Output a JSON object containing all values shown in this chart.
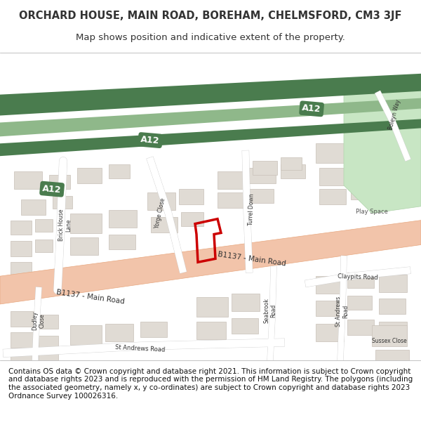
{
  "title_line1": "ORCHARD HOUSE, MAIN ROAD, BOREHAM, CHELMSFORD, CM3 3JF",
  "title_line2": "Map shows position and indicative extent of the property.",
  "footer_text": "Contains OS data © Crown copyright and database right 2021. This information is subject to Crown copyright and database rights 2023 and is reproduced with the permission of HM Land Registry. The polygons (including the associated geometry, namely x, y co-ordinates) are subject to Crown copyright and database rights 2023 Ordnance Survey 100026316.",
  "bg_color": "#f5f3f0",
  "map_bg": "#f0ede8",
  "road_salmon": "#f2c4aa",
  "road_highlight": "#f0b090",
  "green_dark": "#4a7c4e",
  "green_light": "#8fb88a",
  "building_color": "#e0dbd4",
  "building_outline": "#c8c0b8",
  "text_color": "#333333",
  "red_outline": "#cc0000",
  "title_fontsize": 10.5,
  "footer_fontsize": 7.5
}
